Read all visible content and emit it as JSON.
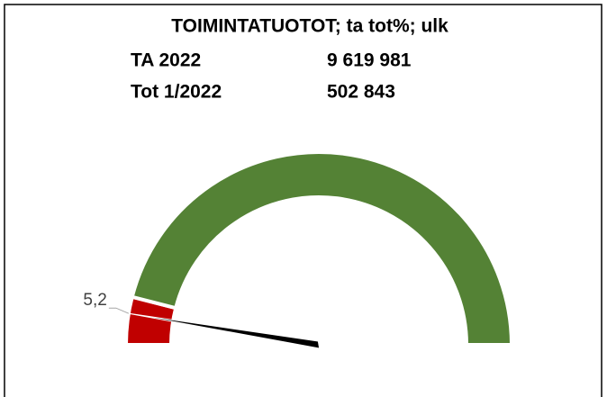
{
  "chart_data": {
    "type": "gauge",
    "title": "TOIMINTATUOTOT; ta tot%; ulk",
    "header_rows": [
      [
        "TA 2022",
        "9 619 981"
      ],
      [
        "Tot 1/2022",
        "502 843"
      ]
    ],
    "ylim": [
      0,
      100
    ],
    "bands": [
      {
        "from": 0,
        "to": 8,
        "color": "#c00000"
      },
      {
        "from": 8,
        "to": 100,
        "color": "#548235"
      }
    ],
    "values": [
      5.2
    ],
    "value_labels": [
      "5,2"
    ],
    "needle_color": "#000000"
  }
}
